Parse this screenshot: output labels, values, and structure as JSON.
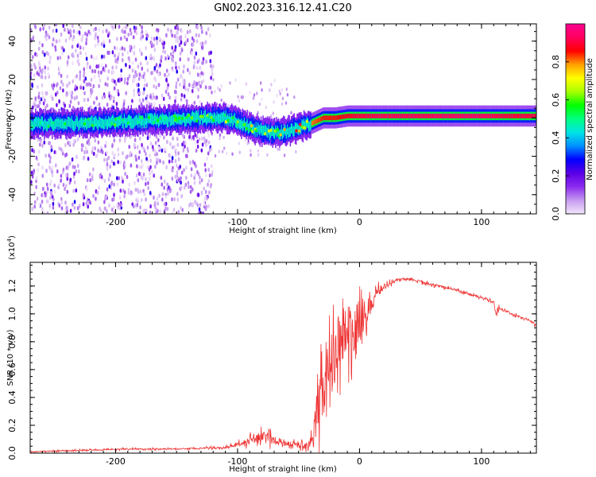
{
  "figure": {
    "title": "GN02.2023.316.12.41.C20"
  },
  "chart_data": [
    {
      "type": "heatmap",
      "xlabel": "Height of straight line (km)",
      "ylabel": "Frequency (Hz)",
      "xlim": [
        -270,
        145
      ],
      "ylim": [
        -50,
        49
      ],
      "xticks": [
        -200,
        -100,
        0,
        100
      ],
      "xtick_labels": [
        "-200",
        "-100",
        "0",
        "100"
      ],
      "yticks": [
        -40,
        -20,
        0,
        20,
        40
      ],
      "ytick_labels": [
        "-40",
        "-20",
        "0",
        "20",
        "40"
      ],
      "ridge": {
        "x": [
          -270,
          -240,
          -200,
          -160,
          -130,
          -110,
          -100,
          -90,
          -80,
          -70,
          -60,
          -50,
          -40,
          -30,
          -20,
          -10,
          0,
          20,
          50,
          80,
          100,
          120,
          145
        ],
        "freq": [
          -3,
          -3,
          -2,
          -1,
          0,
          0,
          -2,
          -5,
          -7,
          -8,
          -7,
          -5,
          -3,
          0,
          0,
          1,
          1,
          1,
          1,
          1,
          1,
          1,
          1
        ],
        "amplitude": [
          0.45,
          0.5,
          0.5,
          0.5,
          0.55,
          0.6,
          0.6,
          0.65,
          0.65,
          0.6,
          0.7,
          0.75,
          0.8,
          0.85,
          0.85,
          0.88,
          0.9,
          0.92,
          0.92,
          0.93,
          0.93,
          0.9,
          0.9
        ]
      },
      "noise_region_x": [
        -270,
        -120
      ],
      "colorbar": {
        "label": "Normalized spectral amplitude",
        "range": [
          0,
          1
        ],
        "ticks": [
          0.0,
          0.2,
          0.4,
          0.6,
          0.8
        ],
        "tick_labels": [
          "0.0",
          "0.2",
          "0.4",
          "0.6",
          "0.8"
        ],
        "colors": [
          "#f2e6fb",
          "#c69bf0",
          "#8c2bef",
          "#5b00e6",
          "#0000ff",
          "#0090ff",
          "#00e5e5",
          "#00ff80",
          "#00ff00",
          "#a8ff00",
          "#ffff00",
          "#ffa000",
          "#ff0000",
          "#ff0060",
          "#ff0090"
        ]
      }
    },
    {
      "type": "line",
      "xlabel": "Height of straight line (km)",
      "ylabel": "SNR (10 * v/v)",
      "exponent_label": "(x10",
      "exponent_power": "4",
      "exponent_close": ")",
      "xlim": [
        -270,
        145
      ],
      "ylim": [
        0,
        1.37
      ],
      "xticks": [
        -200,
        -100,
        0,
        100
      ],
      "xtick_labels": [
        "-200",
        "-100",
        "0",
        "100"
      ],
      "yticks": [
        0.0,
        0.2,
        0.4,
        0.6,
        0.8,
        1.0,
        1.2
      ],
      "ytick_labels": [
        "0.0",
        "0.2",
        "0.4",
        "0.6",
        "0.8",
        "1.0",
        "1.2"
      ],
      "series": [
        {
          "color": "#ee3333",
          "x": [
            -270,
            -250,
            -230,
            -210,
            -190,
            -170,
            -150,
            -130,
            -110,
            -100,
            -90,
            -80,
            -75,
            -70,
            -60,
            -50,
            -45,
            -40,
            -38,
            -35,
            -30,
            -25,
            -20,
            -15,
            -10,
            -5,
            0,
            5,
            10,
            15,
            20,
            25,
            30,
            35,
            40,
            50,
            60,
            70,
            80,
            90,
            100,
            105,
            110,
            112,
            115,
            120,
            130,
            140,
            145
          ],
          "y": [
            0.01,
            0.015,
            0.02,
            0.025,
            0.03,
            0.03,
            0.03,
            0.035,
            0.04,
            0.06,
            0.09,
            0.12,
            0.11,
            0.09,
            0.07,
            0.06,
            0.05,
            0.08,
            0.12,
            0.3,
            0.45,
            0.6,
            0.75,
            0.85,
            0.9,
            0.85,
            0.95,
            1.0,
            1.1,
            1.15,
            1.2,
            1.22,
            1.24,
            1.25,
            1.25,
            1.23,
            1.21,
            1.19,
            1.17,
            1.14,
            1.12,
            1.1,
            1.08,
            1.0,
            1.04,
            1.02,
            0.98,
            0.95,
            0.92
          ],
          "noise": [
            0.004,
            0.005,
            0.006,
            0.006,
            0.006,
            0.006,
            0.006,
            0.007,
            0.01,
            0.02,
            0.04,
            0.05,
            0.05,
            0.04,
            0.03,
            0.03,
            0.03,
            0.05,
            0.1,
            0.2,
            0.3,
            0.3,
            0.3,
            0.3,
            0.28,
            0.25,
            0.22,
            0.18,
            0.12,
            0.06,
            0.03,
            0.02,
            0.015,
            0.012,
            0.012,
            0.012,
            0.012,
            0.012,
            0.012,
            0.012,
            0.012,
            0.012,
            0.012,
            0.04,
            0.02,
            0.012,
            0.012,
            0.012,
            0.012
          ]
        }
      ]
    }
  ]
}
